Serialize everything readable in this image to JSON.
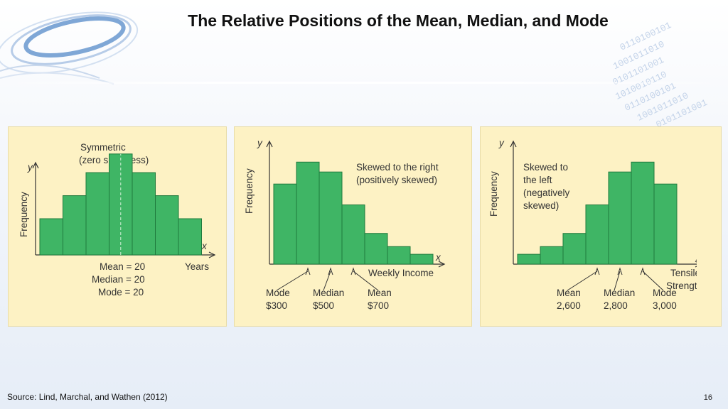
{
  "slide": {
    "title": "The Relative Positions of the Mean, Median, and Mode",
    "source": "Source: Lind, Marchal, and Wathen (2012)",
    "page_number": "16"
  },
  "chart_data": [
    {
      "type": "bar",
      "title": "Symmetric",
      "subtitle": "(zero skewness)",
      "xlabel": "Years",
      "ylabel": "Frequency",
      "x_axis_letter": "x",
      "y_axis_letter": "y",
      "values": [
        0.33,
        0.54,
        0.75,
        0.92,
        0.75,
        0.54,
        0.33
      ],
      "ylim": [
        0,
        1.1
      ],
      "center_labels": [
        "Mean = 20",
        "Median = 20",
        "Mode = 20"
      ],
      "color": "#3fb565"
    },
    {
      "type": "bar",
      "title": "Skewed to the right",
      "subtitle": "(positively skewed)",
      "xlabel": "Weekly Income",
      "ylabel": "Frequency",
      "x_axis_letter": "x",
      "y_axis_letter": "y",
      "values": [
        0.73,
        0.93,
        0.84,
        0.54,
        0.28,
        0.16,
        0.09
      ],
      "ylim": [
        0,
        1.1
      ],
      "markers": [
        {
          "name": "Mode",
          "value": "$300",
          "bar": 1
        },
        {
          "name": "Median",
          "value": "$500",
          "bar": 2
        },
        {
          "name": "Mean",
          "value": "$700",
          "bar": 3
        }
      ],
      "color": "#3fb565"
    },
    {
      "type": "bar",
      "title": "Skewed to",
      "subtitle_lines": [
        "the left",
        "(negatively",
        "skewed)"
      ],
      "xlabel_lines": [
        "Tensile",
        "Strength"
      ],
      "ylabel": "Frequency",
      "x_axis_letter": "x",
      "y_axis_letter": "y",
      "values": [
        0.09,
        0.16,
        0.28,
        0.54,
        0.84,
        0.93,
        0.73
      ],
      "ylim": [
        0,
        1.1
      ],
      "markers": [
        {
          "name": "Mean",
          "value": "2,600",
          "bar": 3
        },
        {
          "name": "Median",
          "value": "2,800",
          "bar": 4
        },
        {
          "name": "Mode",
          "value": "3,000",
          "bar": 5
        }
      ],
      "color": "#3fb565"
    }
  ]
}
